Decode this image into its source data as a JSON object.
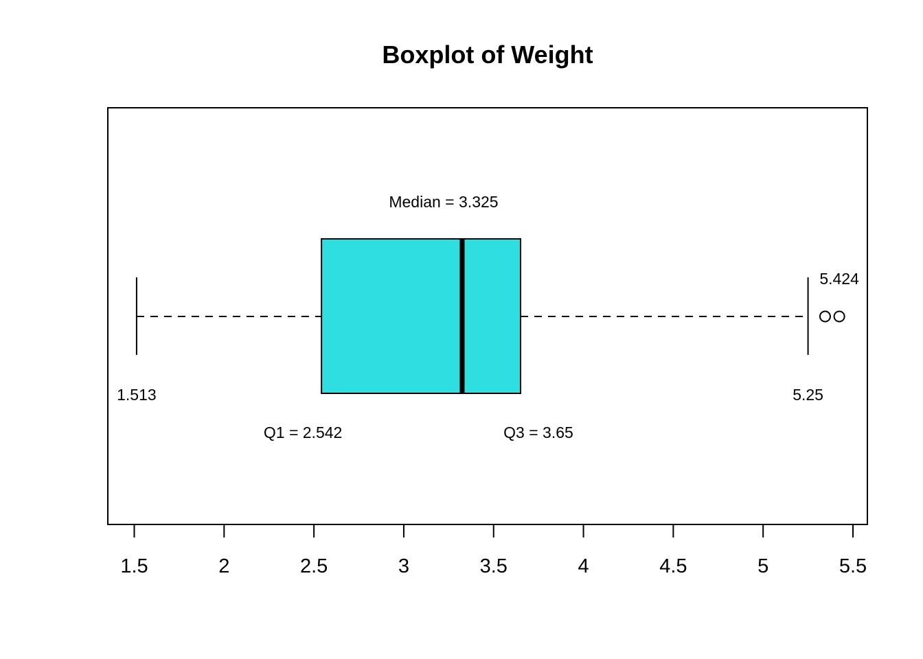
{
  "chart_data": {
    "type": "boxplot",
    "orientation": "horizontal",
    "title": "Boxplot of Weight",
    "xlim": [
      1.5,
      5.5
    ],
    "ticks": [
      1.5,
      2,
      2.5,
      3,
      3.5,
      4,
      4.5,
      5,
      5.5
    ],
    "tick_labels": [
      "1.5",
      "2",
      "2.5",
      "3",
      "3.5",
      "4",
      "4.5",
      "5",
      "5.5"
    ],
    "box_color": "#2EDEE0",
    "stats": {
      "min": 1.513,
      "q1": 2.542,
      "median": 3.325,
      "q3": 3.65,
      "max": 5.25
    },
    "outliers": [
      5.345,
      5.424
    ],
    "annotations": {
      "median": "Median = 3.325",
      "q1": "Q1 = 2.542",
      "q3": "Q3 = 3.65",
      "min": "1.513",
      "max": "5.25",
      "outlier": "5.424"
    }
  }
}
